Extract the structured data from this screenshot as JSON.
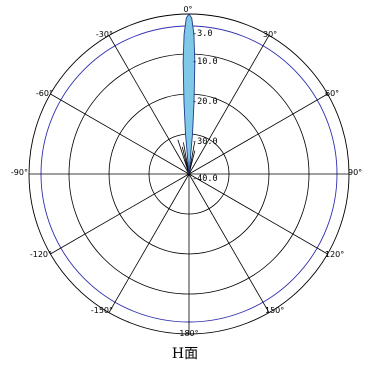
{
  "chart_data": {
    "type": "polar",
    "caption": "H面",
    "angle_ticks": [
      {
        "deg": 0,
        "label": "0°"
      },
      {
        "deg": 30,
        "label": "30°"
      },
      {
        "deg": 60,
        "label": "60°"
      },
      {
        "deg": 90,
        "label": "90°"
      },
      {
        "deg": 120,
        "label": "120°"
      },
      {
        "deg": 150,
        "label": "150°"
      },
      {
        "deg": 180,
        "label": "180°"
      },
      {
        "deg": -150,
        "label": "-150°"
      },
      {
        "deg": -120,
        "label": "-120°"
      },
      {
        "deg": -90,
        "label": "-90°"
      },
      {
        "deg": -60,
        "label": "-60°"
      },
      {
        "deg": -30,
        "label": "-30°"
      }
    ],
    "radial_ticks": [
      {
        "value": -3,
        "label": "-3.0"
      },
      {
        "value": -10,
        "label": "-10.0"
      },
      {
        "value": -20,
        "label": "-20.0"
      },
      {
        "value": -30,
        "label": "-30.0"
      },
      {
        "value": -40,
        "label": "-40.0"
      }
    ],
    "radial_range": [
      -40,
      0
    ],
    "outer_ring_db": 0,
    "reference_ring_db": -3,
    "pattern_color": "#7fc8e8",
    "pattern_outline": "#1e3a8a",
    "reference_color": "#3030b0",
    "series": [
      {
        "values_db": [
          {
            "deg": -6,
            "db": -40
          },
          {
            "deg": -5,
            "db": -30
          },
          {
            "deg": -4,
            "db": -22
          },
          {
            "deg": -3,
            "db": -12
          },
          {
            "deg": -2,
            "db": -5
          },
          {
            "deg": -1,
            "db": -1
          },
          {
            "deg": 0,
            "db": 0
          },
          {
            "deg": 1,
            "db": -1
          },
          {
            "deg": 2,
            "db": -5
          },
          {
            "deg": 3,
            "db": -12
          },
          {
            "deg": 4,
            "db": -22
          },
          {
            "deg": 5,
            "db": -30
          },
          {
            "deg": 6,
            "db": -40
          }
        ]
      }
    ],
    "sidelobes_db": [
      {
        "deg": -18,
        "db": -31
      },
      {
        "deg": -14,
        "db": -33
      },
      {
        "deg": -10,
        "db": -32
      },
      {
        "deg": 10,
        "db": -32
      },
      {
        "deg": 14,
        "db": -34
      }
    ]
  }
}
